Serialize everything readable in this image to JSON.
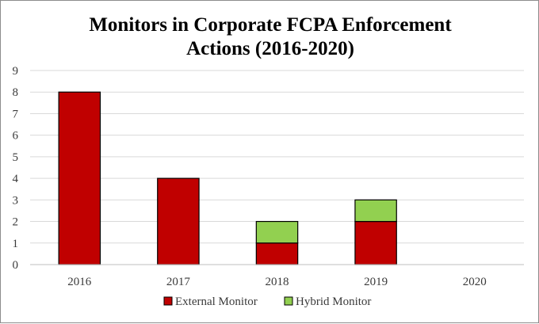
{
  "chart_data": {
    "type": "bar",
    "stacked": true,
    "title_lines": [
      "Monitors in Corporate FCPA Enforcement",
      "Actions (2016-2020)"
    ],
    "categories": [
      "2016",
      "2017",
      "2018",
      "2019",
      "2020"
    ],
    "series": [
      {
        "name": "External Monitor",
        "values": [
          8,
          4,
          1,
          2,
          0
        ],
        "color": "#c00000"
      },
      {
        "name": "Hybrid Monitor",
        "values": [
          0,
          0,
          1,
          1,
          0
        ],
        "color": "#92d050"
      }
    ],
    "ylim": [
      0,
      9
    ],
    "yticks": [
      "0",
      "1",
      "2",
      "3",
      "4",
      "5",
      "6",
      "7",
      "8",
      "9"
    ],
    "grid": true,
    "legend": "bottom",
    "xlabel": "",
    "ylabel": ""
  }
}
